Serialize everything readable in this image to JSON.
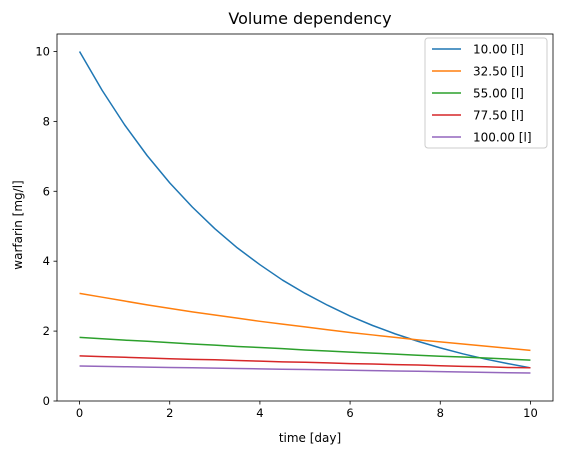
{
  "chart_data": {
    "type": "line",
    "title": "Volume dependency",
    "xlabel": "time [day]",
    "ylabel": "warfarin [mg/l]",
    "xlim": [
      -0.5,
      10.5
    ],
    "ylim": [
      0,
      10.5
    ],
    "xticks": [
      0,
      2,
      4,
      6,
      8,
      10
    ],
    "yticks": [
      0,
      2,
      4,
      6,
      8,
      10
    ],
    "grid": false,
    "legend_position": "top-right",
    "x": [
      0,
      0.5,
      1,
      1.5,
      2,
      2.5,
      3,
      3.5,
      4,
      4.5,
      5,
      5.5,
      6,
      6.5,
      7,
      7.5,
      8,
      8.5,
      9,
      9.5,
      10
    ],
    "series": [
      {
        "name": "10.00 [l]",
        "color": "#1f77b4",
        "values": [
          10.0,
          8.89,
          7.9,
          7.02,
          6.24,
          5.55,
          4.93,
          4.38,
          3.9,
          3.46,
          3.08,
          2.74,
          2.43,
          2.16,
          1.92,
          1.71,
          1.52,
          1.35,
          1.2,
          1.07,
          0.95
        ]
      },
      {
        "name": "32.50 [l]",
        "color": "#ff7f0e",
        "values": [
          3.08,
          2.97,
          2.86,
          2.75,
          2.65,
          2.55,
          2.46,
          2.37,
          2.28,
          2.2,
          2.12,
          2.04,
          1.96,
          1.89,
          1.82,
          1.75,
          1.69,
          1.63,
          1.57,
          1.51,
          1.45
        ]
      },
      {
        "name": "55.00 [l]",
        "color": "#2ca02c",
        "values": [
          1.82,
          1.78,
          1.74,
          1.71,
          1.67,
          1.63,
          1.6,
          1.56,
          1.53,
          1.5,
          1.46,
          1.43,
          1.4,
          1.37,
          1.34,
          1.31,
          1.28,
          1.26,
          1.23,
          1.2,
          1.17
        ]
      },
      {
        "name": "77.50 [l]",
        "color": "#d62728",
        "values": [
          1.29,
          1.27,
          1.25,
          1.23,
          1.21,
          1.19,
          1.18,
          1.16,
          1.14,
          1.12,
          1.11,
          1.09,
          1.07,
          1.06,
          1.04,
          1.03,
          1.01,
          0.99,
          0.98,
          0.96,
          0.95
        ]
      },
      {
        "name": "100.00 [l]",
        "color": "#9467bd",
        "values": [
          1.0,
          0.99,
          0.98,
          0.97,
          0.96,
          0.95,
          0.94,
          0.93,
          0.92,
          0.91,
          0.9,
          0.89,
          0.88,
          0.87,
          0.86,
          0.85,
          0.84,
          0.83,
          0.82,
          0.81,
          0.8
        ]
      }
    ]
  }
}
